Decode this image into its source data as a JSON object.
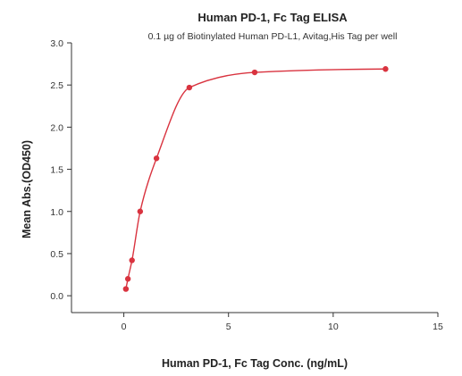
{
  "chart_data": {
    "type": "scatter",
    "title": "Human PD-1, Fc Tag ELISA",
    "subtitle": "0.1 µg of Biotinylated Human PD-L1, Avitag,His Tag per well",
    "xlabel": "Human PD-1, Fc Tag Conc. (ng/mL)",
    "ylabel": "Mean Abs.(OD450)",
    "xlim": [
      -2.5,
      15
    ],
    "ylim": [
      -0.2,
      3.0
    ],
    "xticks": [
      0,
      5,
      10,
      15
    ],
    "yticks": [
      0.0,
      0.5,
      1.0,
      1.5,
      2.0,
      2.5,
      3.0
    ],
    "xtick_labels": [
      "0",
      "5",
      "10",
      "15"
    ],
    "ytick_labels": [
      "0.0",
      "0.5",
      "1.0",
      "1.5",
      "2.0",
      "2.5",
      "3.0"
    ],
    "grid": false,
    "color": "#d9333f",
    "series": [
      {
        "points": [
          {
            "x": 0.098,
            "y": 0.08
          },
          {
            "x": 0.195,
            "y": 0.2
          },
          {
            "x": 0.39,
            "y": 0.42
          },
          {
            "x": 0.78,
            "y": 1.0
          },
          {
            "x": 1.56,
            "y": 1.63
          },
          {
            "x": 3.13,
            "y": 2.47
          },
          {
            "x": 6.25,
            "y": 2.65
          },
          {
            "x": 12.5,
            "y": 2.69
          }
        ]
      }
    ]
  }
}
